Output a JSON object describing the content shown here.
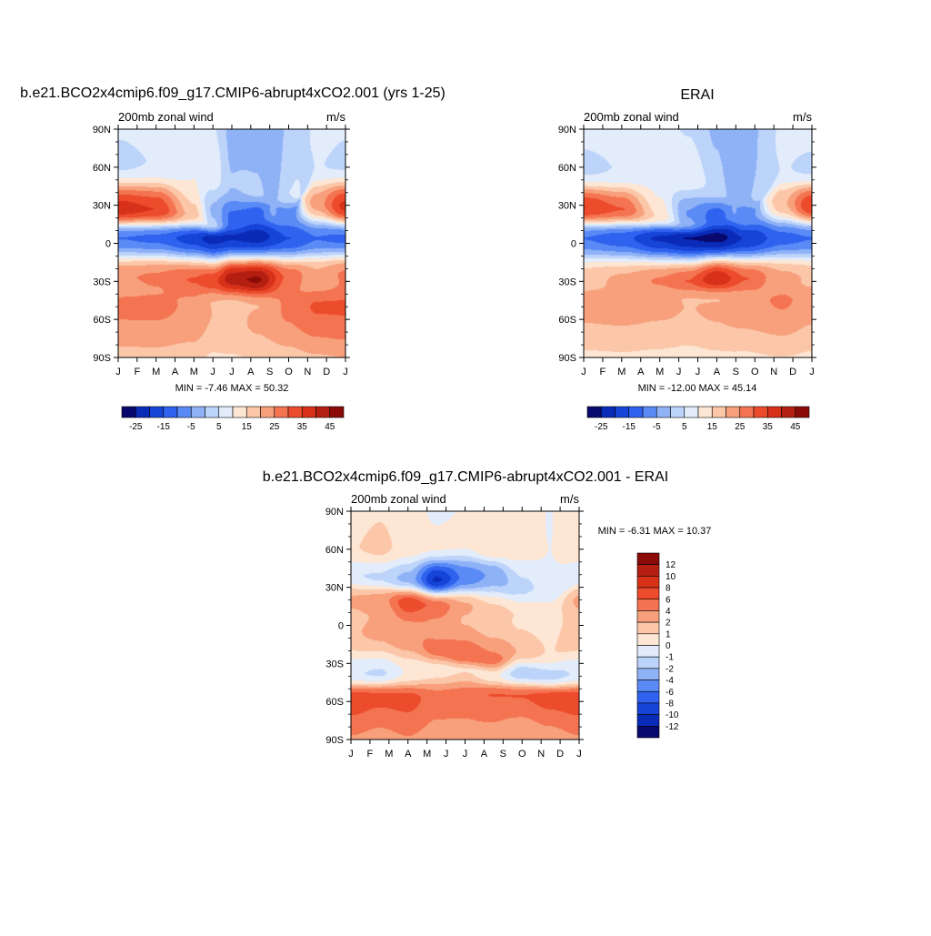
{
  "chart_data": [
    {
      "type": "heatmap",
      "title": "b.e21.BCO2x4cmip6.f09_g17.CMIP6-abrupt4xCO2.001 (yrs 1-25)",
      "left_label": "200mb zonal wind",
      "right_label": "m/s",
      "x_ticks": [
        "J",
        "F",
        "M",
        "A",
        "M",
        "J",
        "J",
        "A",
        "S",
        "O",
        "N",
        "D",
        "J"
      ],
      "y_ticks": [
        "90N",
        "60N",
        "30N",
        "0",
        "30S",
        "60S",
        "90S"
      ],
      "ylim": [
        -90,
        90
      ],
      "stats": "MIN =  -7.46 MAX =  50.32",
      "colorbar_ticks": [
        "-25",
        "-15",
        "-5",
        "5",
        "15",
        "25",
        "35",
        "45"
      ],
      "colorbar_colors": [
        "#08086e",
        "#0a2bb8",
        "#1644d6",
        "#2f62ee",
        "#5a8af5",
        "#8fb2f7",
        "#bcd3fa",
        "#e2ecfb",
        "#fde6d4",
        "#fbc7a8",
        "#f8a07c",
        "#f47451",
        "#ec4b2c",
        "#d8311a",
        "#b41f12",
        "#8a0b08"
      ],
      "stations": [
        {
          "x": 0,
          "features": [
            [
              27,
              0.86
            ],
            [
              -27,
              0.68
            ],
            [
              -50,
              0.7
            ],
            [
              4,
              0.24
            ],
            [
              65,
              0.42
            ]
          ]
        },
        {
          "x": 2,
          "features": [
            [
              27,
              0.82
            ],
            [
              -27,
              0.7
            ],
            [
              -50,
              0.7
            ],
            [
              4,
              0.22
            ],
            [
              65,
              0.44
            ]
          ]
        },
        {
          "x": 4,
          "features": [
            [
              23,
              0.6
            ],
            [
              -29,
              0.76
            ],
            [
              -48,
              0.68
            ],
            [
              4,
              0.14
            ],
            [
              62,
              0.5
            ]
          ]
        },
        {
          "x": 5,
          "features": [
            [
              14,
              0.42
            ],
            [
              -30,
              0.8
            ],
            [
              -48,
              0.62
            ],
            [
              4,
              0.06
            ],
            [
              58,
              0.48
            ]
          ]
        },
        {
          "x": 6,
          "features": [
            [
              15,
              0.24
            ],
            [
              -28,
              0.92
            ],
            [
              -50,
              0.6
            ],
            [
              5,
              0.1
            ],
            [
              48,
              0.38
            ]
          ]
        },
        {
          "x": 7.3,
          "features": [
            [
              22,
              0.22
            ],
            [
              -29,
              0.96
            ],
            [
              -50,
              0.62
            ],
            [
              6,
              0.08
            ],
            [
              42,
              0.4
            ]
          ]
        },
        {
          "x": 9,
          "features": [
            [
              40,
              0.44
            ],
            [
              -27,
              0.74
            ],
            [
              -52,
              0.7
            ],
            [
              4,
              0.18
            ],
            [
              20,
              0.26
            ]
          ]
        },
        {
          "x": 10.5,
          "features": [
            [
              32,
              0.66
            ],
            [
              -25,
              0.64
            ],
            [
              -50,
              0.76
            ],
            [
              4,
              0.24
            ],
            [
              62,
              0.44
            ]
          ]
        },
        {
          "x": 12,
          "features": [
            [
              29,
              0.84
            ],
            [
              -25,
              0.7
            ],
            [
              -50,
              0.76
            ],
            [
              4,
              0.22
            ],
            [
              65,
              0.42
            ]
          ]
        }
      ]
    },
    {
      "type": "heatmap",
      "title": "ERAI",
      "left_label": "200mb zonal wind",
      "right_label": "m/s",
      "x_ticks": [
        "J",
        "F",
        "M",
        "A",
        "M",
        "J",
        "J",
        "A",
        "S",
        "O",
        "N",
        "D",
        "J"
      ],
      "y_ticks": [
        "90N",
        "60N",
        "30N",
        "0",
        "30S",
        "60S",
        "90S"
      ],
      "ylim": [
        -90,
        90
      ],
      "stats": "MIN = -12.00 MAX =  45.14",
      "colorbar_ticks": [
        "-25",
        "-15",
        "-5",
        "5",
        "15",
        "25",
        "35",
        "45"
      ],
      "colorbar_colors": [
        "#08086e",
        "#0a2bb8",
        "#1644d6",
        "#2f62ee",
        "#5a8af5",
        "#8fb2f7",
        "#bcd3fa",
        "#e2ecfb",
        "#fde6d4",
        "#fbc7a8",
        "#f8a07c",
        "#f47451",
        "#ec4b2c",
        "#d8311a",
        "#b41f12",
        "#8a0b08"
      ],
      "stations": [
        {
          "x": 0,
          "features": [
            [
              28,
              0.82
            ],
            [
              -30,
              0.6
            ],
            [
              -45,
              0.66
            ],
            [
              4,
              0.24
            ],
            [
              60,
              0.42
            ]
          ]
        },
        {
          "x": 2,
          "features": [
            [
              27,
              0.76
            ],
            [
              -30,
              0.64
            ],
            [
              -45,
              0.66
            ],
            [
              4,
              0.2
            ],
            [
              60,
              0.44
            ]
          ]
        },
        {
          "x": 4,
          "features": [
            [
              22,
              0.56
            ],
            [
              -30,
              0.7
            ],
            [
              -45,
              0.64
            ],
            [
              4,
              0.1
            ],
            [
              58,
              0.5
            ]
          ]
        },
        {
          "x": 5.5,
          "features": [
            [
              15,
              0.34
            ],
            [
              -30,
              0.76
            ],
            [
              -45,
              0.62
            ],
            [
              4,
              0.04
            ],
            [
              55,
              0.48
            ]
          ]
        },
        {
          "x": 7,
          "features": [
            [
              18,
              0.22
            ],
            [
              -28,
              0.88
            ],
            [
              -45,
              0.62
            ],
            [
              5,
              0.02
            ],
            [
              45,
              0.42
            ]
          ]
        },
        {
          "x": 8.5,
          "features": [
            [
              38,
              0.36
            ],
            [
              -28,
              0.76
            ],
            [
              -45,
              0.66
            ],
            [
              4,
              0.12
            ],
            [
              20,
              0.28
            ]
          ]
        },
        {
          "x": 10.5,
          "features": [
            [
              32,
              0.62
            ],
            [
              -27,
              0.64
            ],
            [
              -45,
              0.7
            ],
            [
              4,
              0.22
            ],
            [
              60,
              0.44
            ]
          ]
        },
        {
          "x": 12,
          "features": [
            [
              30,
              0.82
            ],
            [
              -28,
              0.62
            ],
            [
              -45,
              0.66
            ],
            [
              4,
              0.24
            ],
            [
              60,
              0.42
            ]
          ]
        }
      ]
    },
    {
      "type": "heatmap",
      "title": "b.e21.BCO2x4cmip6.f09_g17.CMIP6-abrupt4xCO2.001 - ERAI",
      "left_label": "200mb zonal wind",
      "right_label": "m/s",
      "x_ticks": [
        "J",
        "F",
        "M",
        "A",
        "M",
        "J",
        "J",
        "A",
        "S",
        "O",
        "N",
        "D",
        "J"
      ],
      "y_ticks": [
        "90N",
        "60N",
        "30N",
        "0",
        "30S",
        "60S",
        "90S"
      ],
      "ylim": [
        -90,
        90
      ],
      "stats": "MIN =  -6.31 MAX =  10.37",
      "colorbar_ticks": [
        "12",
        "10",
        "8",
        "6",
        "4",
        "2",
        "1",
        "0",
        "-1",
        "-2",
        "-4",
        "-6",
        "-8",
        "-10",
        "-12"
      ],
      "colorbar_colors": [
        "#8a0b08",
        "#b41f12",
        "#d8311a",
        "#ec4b2c",
        "#f47451",
        "#f8a07c",
        "#fbc7a8",
        "#fde6d4",
        "#e2ecfb",
        "#bcd3fa",
        "#8fb2f7",
        "#5a8af5",
        "#2f62ee",
        "#1644d6",
        "#0a2bb8",
        "#08086e"
      ],
      "stations": [
        {
          "x": 0,
          "features": [
            [
              20,
              0.64
            ],
            [
              -5,
              0.62
            ],
            [
              -58,
              0.8
            ],
            [
              -38,
              0.44
            ],
            [
              40,
              0.44
            ],
            [
              62,
              0.56
            ]
          ]
        },
        {
          "x": 1.5,
          "features": [
            [
              20,
              0.66
            ],
            [
              -5,
              0.64
            ],
            [
              -57,
              0.78
            ],
            [
              -38,
              0.42
            ],
            [
              38,
              0.42
            ],
            [
              62,
              0.58
            ]
          ]
        },
        {
          "x": 3,
          "features": [
            [
              18,
              0.8
            ],
            [
              -10,
              0.66
            ],
            [
              -58,
              0.78
            ],
            [
              -37,
              0.5
            ],
            [
              37,
              0.34
            ],
            [
              65,
              0.54
            ]
          ]
        },
        {
          "x": 4.5,
          "features": [
            [
              15,
              0.74
            ],
            [
              -20,
              0.72
            ],
            [
              -58,
              0.72
            ],
            [
              -35,
              0.52
            ],
            [
              36,
              0.1
            ],
            [
              65,
              0.52
            ]
          ]
        },
        {
          "x": 6,
          "features": [
            [
              15,
              0.64
            ],
            [
              -25,
              0.76
            ],
            [
              -56,
              0.72
            ],
            [
              -35,
              0.54
            ],
            [
              38,
              0.26
            ],
            [
              68,
              0.52
            ]
          ]
        },
        {
          "x": 7.5,
          "features": [
            [
              10,
              0.58
            ],
            [
              -28,
              0.72
            ],
            [
              -55,
              0.76
            ],
            [
              -40,
              0.5
            ],
            [
              40,
              0.32
            ],
            [
              62,
              0.56
            ]
          ]
        },
        {
          "x": 9,
          "features": [
            [
              8,
              0.56
            ],
            [
              -20,
              0.62
            ],
            [
              -56,
              0.76
            ],
            [
              -38,
              0.38
            ],
            [
              30,
              0.42
            ],
            [
              64,
              0.52
            ]
          ]
        },
        {
          "x": 10.5,
          "features": [
            [
              10,
              0.52
            ],
            [
              -20,
              0.56
            ],
            [
              -57,
              0.8
            ],
            [
              -40,
              0.4
            ],
            [
              30,
              0.46
            ],
            [
              60,
              0.5
            ]
          ]
        },
        {
          "x": 12,
          "features": [
            [
              20,
              0.64
            ],
            [
              -5,
              0.62
            ],
            [
              -58,
              0.8
            ],
            [
              -38,
              0.44
            ],
            [
              40,
              0.44
            ],
            [
              62,
              0.56
            ]
          ]
        }
      ]
    }
  ]
}
